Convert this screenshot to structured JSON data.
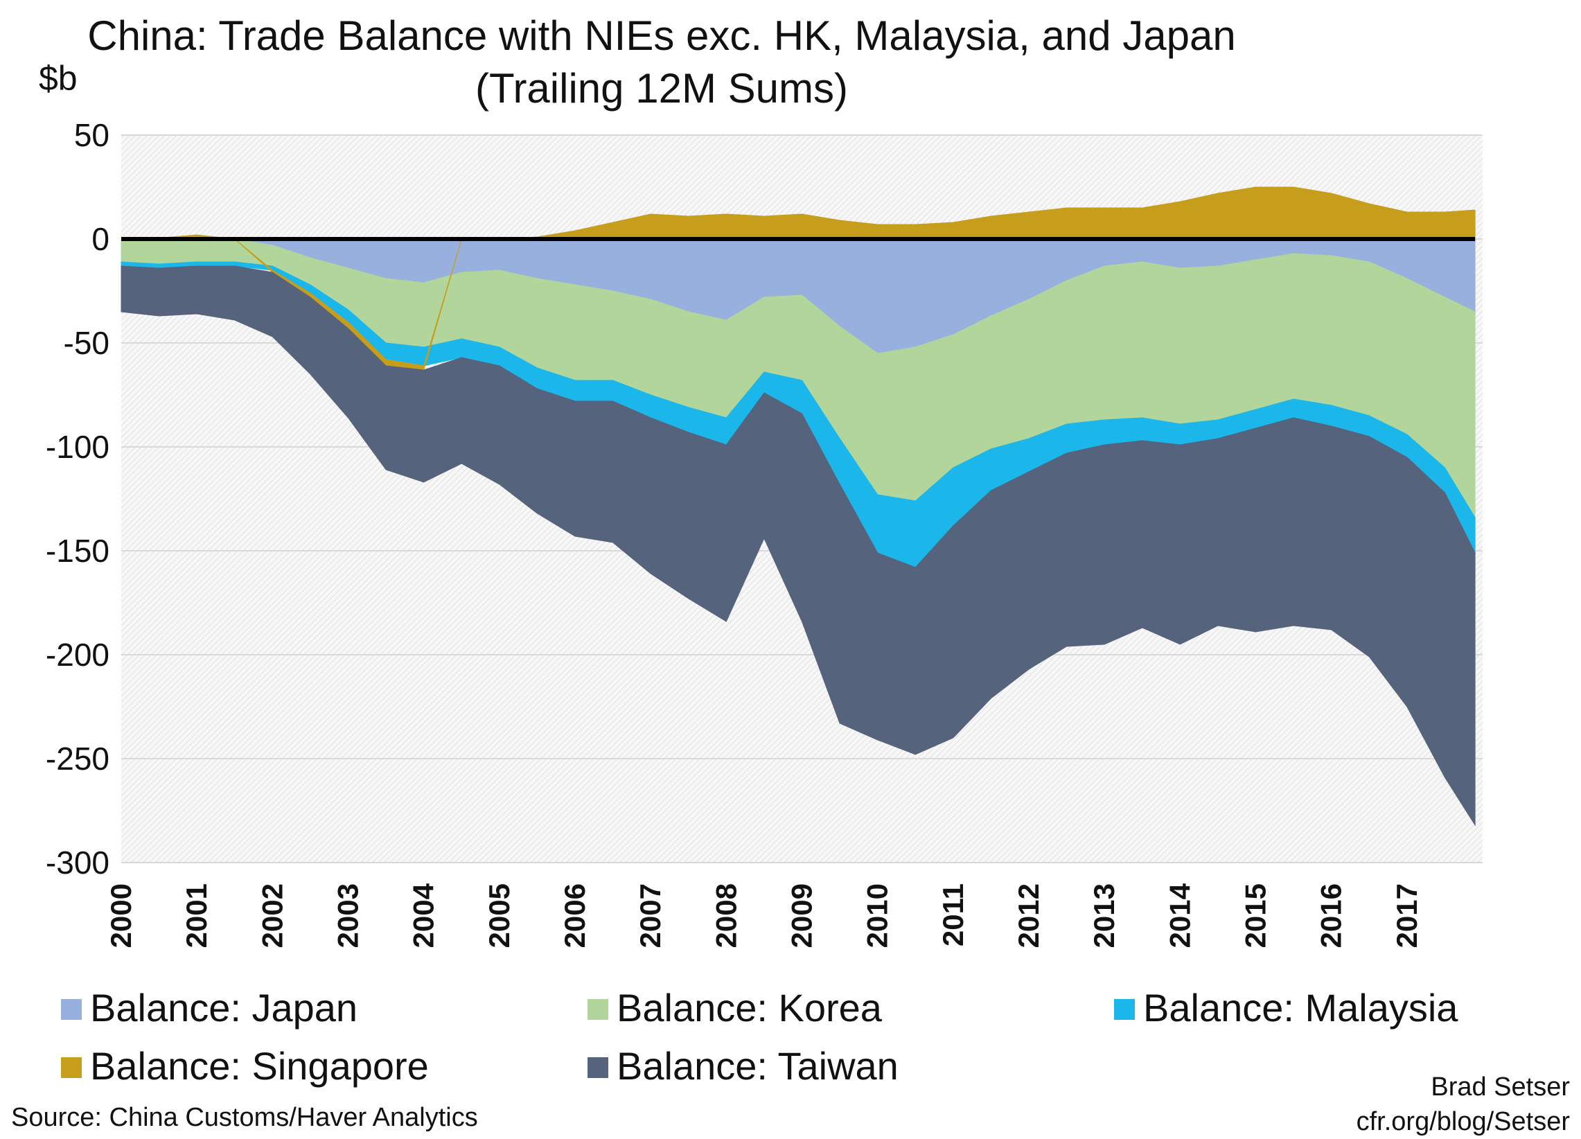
{
  "chart_data": {
    "type": "area",
    "title": "China: Trade Balance with NIEs exc. HK, Malaysia, and Japan",
    "subtitle": "(Trailing 12M Sums)",
    "ylabel": "$b",
    "ylim": [
      -300,
      50
    ],
    "yticks": [
      50,
      0,
      -50,
      -100,
      -150,
      -200,
      -250,
      -300
    ],
    "x_ticks": [
      "2000",
      "2001",
      "2002",
      "2003",
      "2004",
      "2005",
      "2006",
      "2007",
      "2008",
      "2009",
      "2010",
      "2011",
      "2012",
      "2013",
      "2014",
      "2015",
      "2016",
      "2017"
    ],
    "stacked": true,
    "x": [
      2000.0,
      2000.5,
      2001.0,
      2001.5,
      2002.0,
      2002.5,
      2003.0,
      2003.5,
      2004.0,
      2004.5,
      2005.0,
      2005.5,
      2006.0,
      2006.5,
      2007.0,
      2007.5,
      2008.0,
      2008.5,
      2009.0,
      2009.5,
      2010.0,
      2010.5,
      2011.0,
      2011.5,
      2012.0,
      2012.5,
      2013.0,
      2013.5,
      2014.0,
      2014.5,
      2015.0,
      2015.5,
      2016.0,
      2016.5,
      2017.0,
      2017.5,
      2017.9
    ],
    "series": [
      {
        "name": "Balance: Japan",
        "color": "#98b0dd",
        "values": [
          0,
          0,
          0,
          0,
          -3,
          -9,
          -14,
          -19,
          -21,
          -16,
          -15,
          -19,
          -22,
          -25,
          -29,
          -35,
          -39,
          -28,
          -27,
          -42,
          -55,
          -52,
          -46,
          -37,
          -29,
          -20,
          -13,
          -11,
          -14,
          -13,
          -10,
          -7,
          -8,
          -11,
          -19,
          -28,
          -35
        ]
      },
      {
        "name": "Balance: Korea",
        "color": "#b1d59a",
        "values": [
          -11,
          -12,
          -11,
          -11,
          -10,
          -13,
          -20,
          -31,
          -31,
          -32,
          -37,
          -43,
          -46,
          -43,
          -46,
          -46,
          -47,
          -36,
          -41,
          -54,
          -68,
          -74,
          -64,
          -64,
          -67,
          -69,
          -74,
          -75,
          -75,
          -74,
          -72,
          -70,
          -72,
          -74,
          -75,
          -82,
          -99
        ]
      },
      {
        "name": "Balance: Malaysia",
        "color": "#1cb7ea",
        "values": [
          -2,
          -2,
          -2,
          -2,
          -2,
          -4,
          -6,
          -8,
          -9,
          -9,
          -9,
          -10,
          -10,
          -10,
          -11,
          -12,
          -13,
          -10,
          -16,
          -22,
          -28,
          -32,
          -28,
          -20,
          -16,
          -14,
          -12,
          -11,
          -10,
          -9,
          -9,
          -9,
          -10,
          -10,
          -11,
          -12,
          -17
        ]
      },
      {
        "name": "Balance: Singapore",
        "color": "#c69e1c",
        "values": [
          0,
          0.5,
          2,
          0,
          -1,
          -2,
          -3,
          -3,
          -2,
          0,
          0,
          1,
          4,
          8,
          12,
          11,
          12,
          11,
          12,
          9,
          7,
          7,
          8,
          11,
          13,
          15,
          15,
          15,
          18,
          22,
          25,
          25,
          22,
          17,
          13,
          13,
          14
        ]
      },
      {
        "name": "Balance: Taiwan",
        "color": "#56637c",
        "values": [
          -22,
          -23,
          -23,
          -26,
          -31,
          -37,
          -43,
          -50,
          -54,
          -51,
          -57,
          -60,
          -65,
          -68,
          -75,
          -80,
          -85,
          -70,
          -100,
          -115,
          -90,
          -90,
          -102,
          -100,
          -95,
          -93,
          -96,
          -90,
          -96,
          -90,
          -98,
          -100,
          -98,
          -106,
          -120,
          -137,
          -131
        ]
      }
    ]
  },
  "legend_positions": "bottom",
  "footer": {
    "source": "Source: China Customs/Haver Analytics",
    "credit_name": "Brad Setser",
    "credit_url": "cfr.org/blog/Setser"
  }
}
